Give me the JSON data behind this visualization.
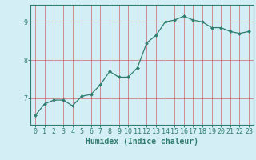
{
  "x": [
    0,
    1,
    2,
    3,
    4,
    5,
    6,
    7,
    8,
    9,
    10,
    11,
    12,
    13,
    14,
    15,
    16,
    17,
    18,
    19,
    20,
    21,
    22,
    23
  ],
  "y": [
    6.55,
    6.85,
    6.95,
    6.95,
    6.8,
    7.05,
    7.1,
    7.35,
    7.7,
    7.55,
    7.55,
    7.8,
    8.45,
    8.65,
    9.0,
    9.05,
    9.15,
    9.05,
    9.0,
    8.85,
    8.85,
    8.75,
    8.7,
    8.75
  ],
  "line_color": "#2e7d6e",
  "marker": "D",
  "marker_size": 2.0,
  "bg_color": "#d4eef5",
  "grid_color": "#cc4444",
  "xlabel": "Humidex (Indice chaleur)",
  "yticks": [
    7,
    8,
    9
  ],
  "xlim": [
    -0.5,
    23.5
  ],
  "ylim": [
    6.3,
    9.45
  ],
  "font_color": "#2e7d6e",
  "label_fontsize": 7.0,
  "tick_fontsize": 6.0,
  "line_width": 0.9
}
